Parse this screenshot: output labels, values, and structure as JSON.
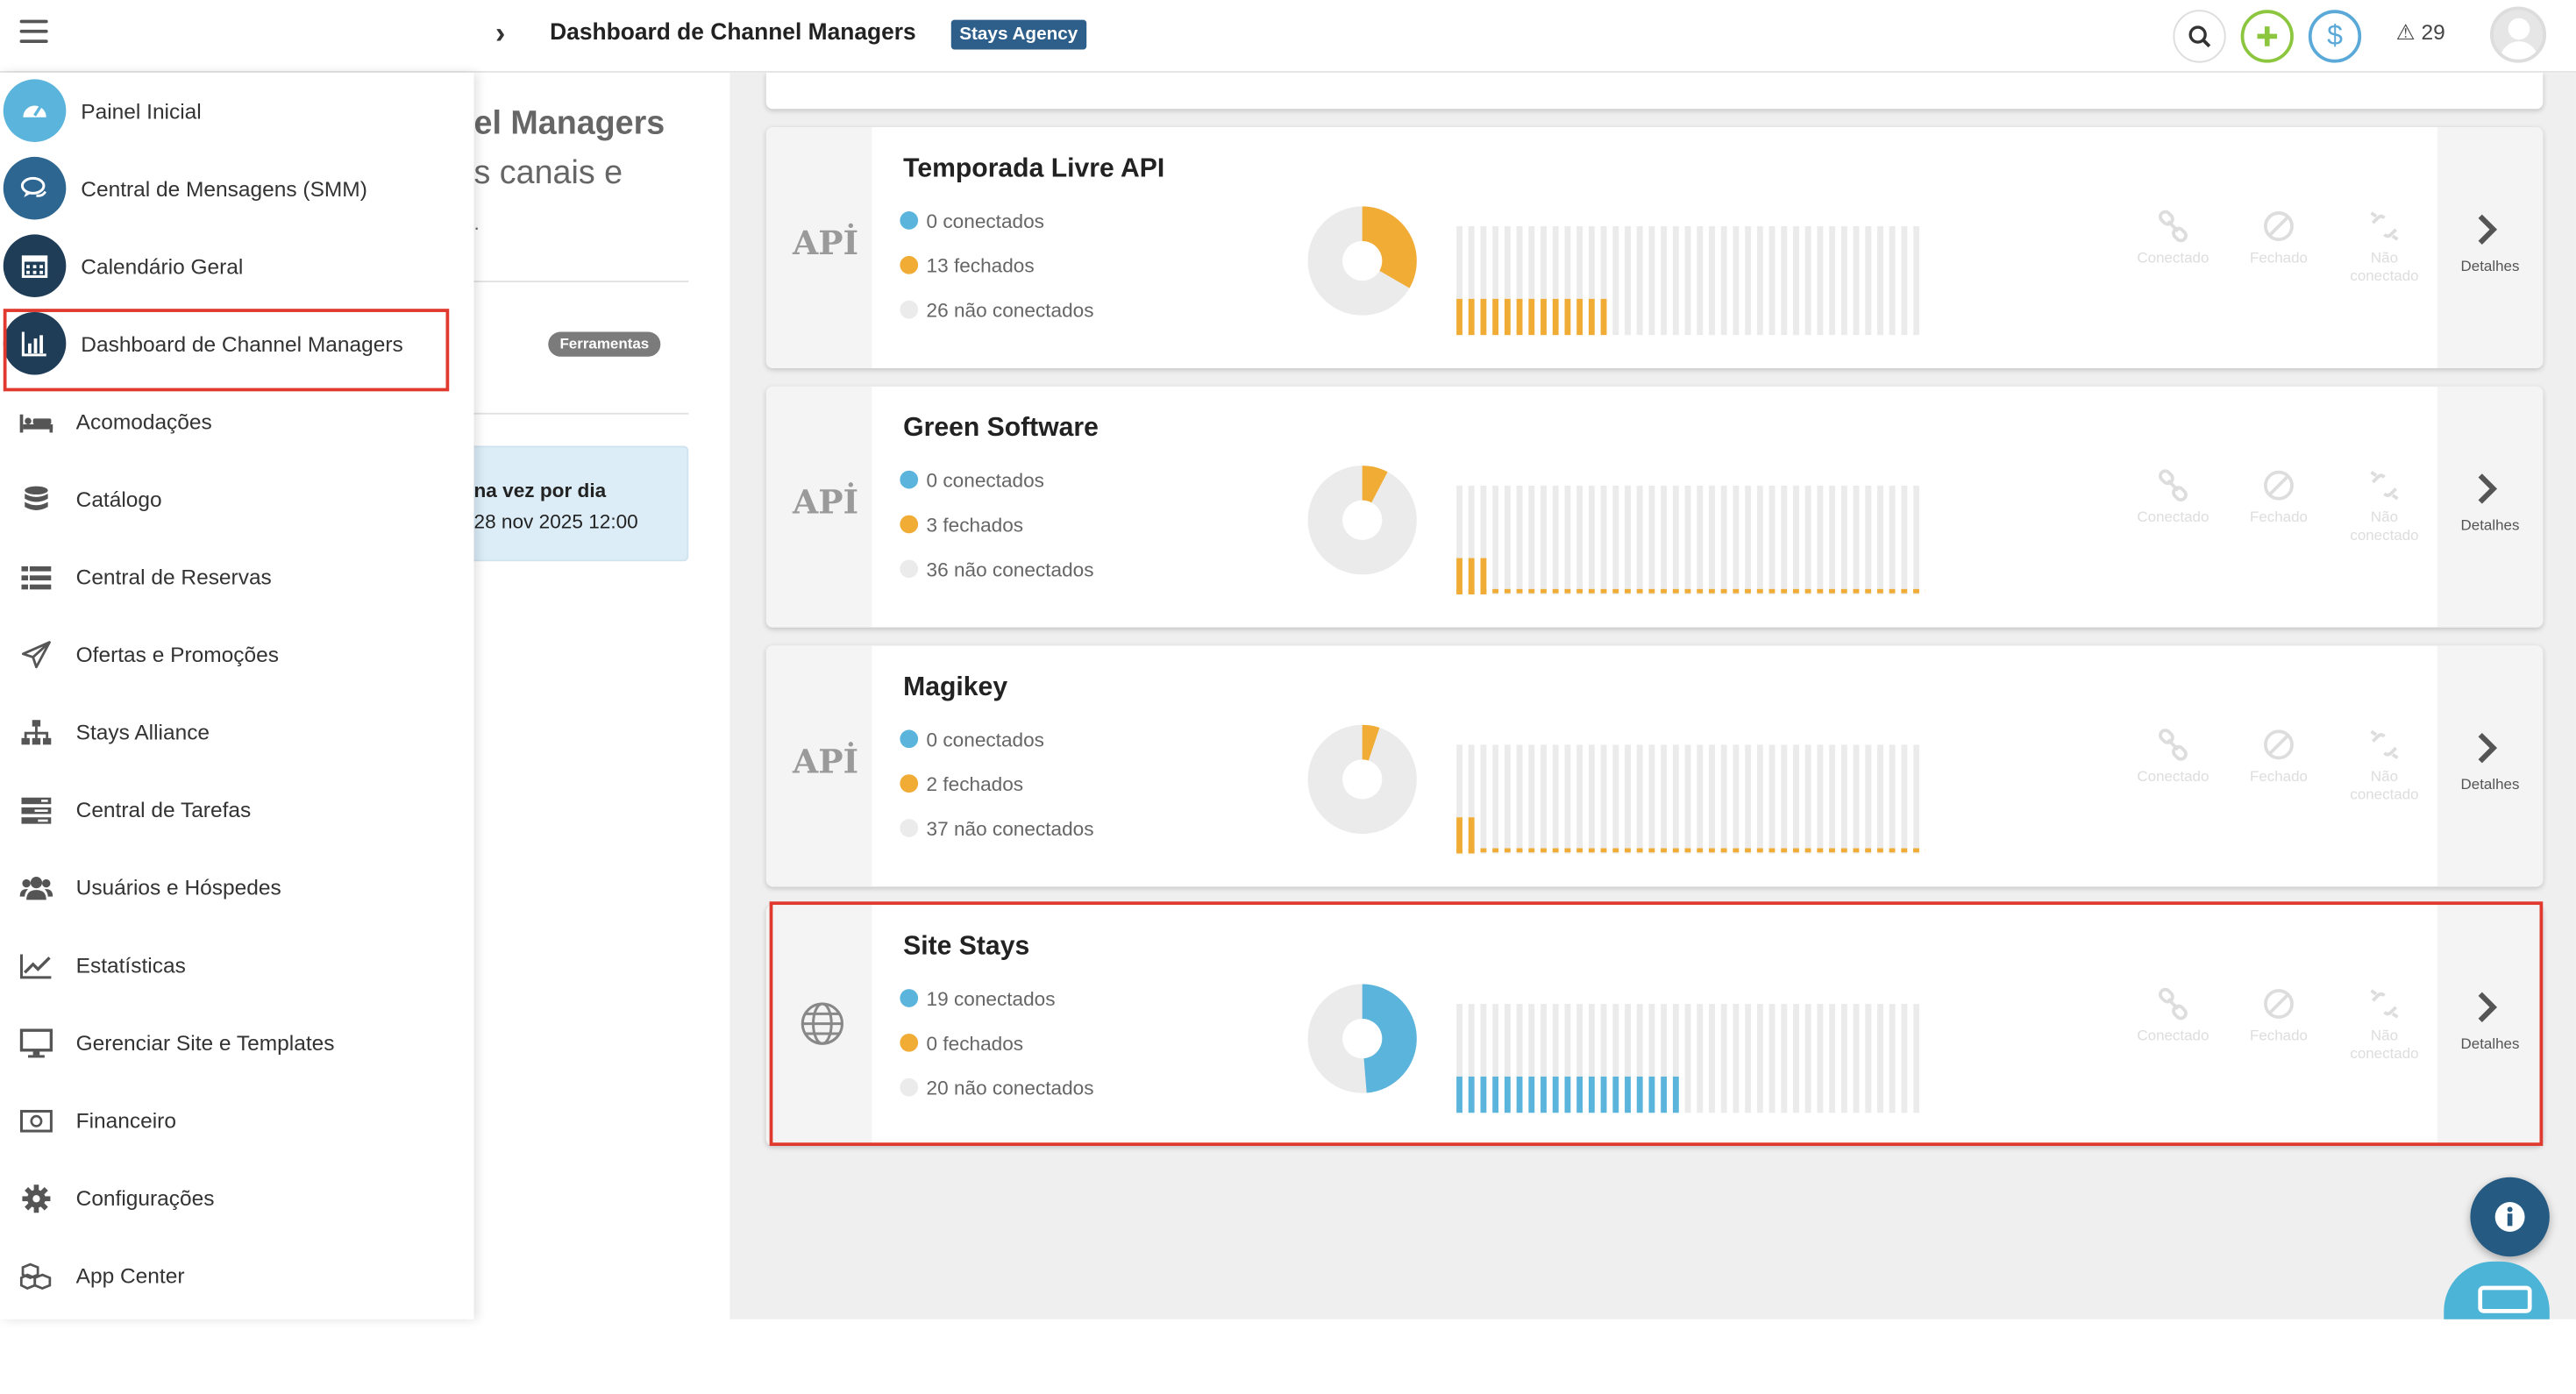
{
  "header": {
    "title": "Dashboard de Channel Managers",
    "agency_badge": "Stays Agency",
    "alerts_count": "29",
    "icons": [
      "menu-icon",
      "chevron-right-icon",
      "search-icon",
      "plus-icon",
      "dollar-icon",
      "warning-icon",
      "avatar"
    ]
  },
  "sidebar": {
    "items": [
      {
        "label": "Painel Inicial",
        "icon": "dashboard-gauge-icon"
      },
      {
        "label": "Central de Mensagens (SMM)",
        "icon": "chat-bubbles-icon"
      },
      {
        "label": "Calendário Geral",
        "icon": "calendar-icon"
      },
      {
        "label": "Dashboard de Channel Managers",
        "icon": "bar-chart-icon"
      },
      {
        "label": "Acomodações",
        "icon": "bed-icon"
      },
      {
        "label": "Catálogo",
        "icon": "database-icon"
      },
      {
        "label": "Central de Reservas",
        "icon": "list-icon"
      },
      {
        "label": "Ofertas e Promoções",
        "icon": "paper-plane-icon"
      },
      {
        "label": "Stays Alliance",
        "icon": "sitemap-icon"
      },
      {
        "label": "Central de Tarefas",
        "icon": "tasks-icon"
      },
      {
        "label": "Usuários e Hóspedes",
        "icon": "users-icon"
      },
      {
        "label": "Estatísticas",
        "icon": "line-chart-icon"
      },
      {
        "label": "Gerenciar Site e Templates",
        "icon": "monitor-icon"
      },
      {
        "label": "Financeiro",
        "icon": "money-icon"
      },
      {
        "label": "Configurações",
        "icon": "gear-icon"
      },
      {
        "label": "App Center",
        "icon": "cubes-icon"
      }
    ]
  },
  "background_panel": {
    "title_fragment": "el Managers",
    "subtitle_fragment": "s canais e",
    "dot_fragment": ".",
    "tools_badge": "Ferramentas",
    "schedule_line1": "na vez por dia",
    "schedule_line2": "28 nov 2025 12:00"
  },
  "channels": [
    {
      "name": "Temporada Livre API",
      "icon": "api-icon",
      "connected": "0 conectados",
      "closed": "13 fechados",
      "not_connected": "26 não conectados",
      "counts": {
        "connected": 0,
        "closed": 13,
        "not_connected": 26
      }
    },
    {
      "name": "Green Software",
      "icon": "api-icon",
      "connected": "0 conectados",
      "closed": "3 fechados",
      "not_connected": "36 não conectados",
      "counts": {
        "connected": 0,
        "closed": 3,
        "not_connected": 36
      }
    },
    {
      "name": "Magikey",
      "icon": "api-icon",
      "connected": "0 conectados",
      "closed": "2 fechados",
      "not_connected": "37 não conectados",
      "counts": {
        "connected": 0,
        "closed": 2,
        "not_connected": 37
      }
    },
    {
      "name": "Site Stays",
      "icon": "globe-icon",
      "connected": "19 conectados",
      "closed": "0 fechados",
      "not_connected": "20 não conectados",
      "counts": {
        "connected": 19,
        "closed": 0,
        "not_connected": 20
      }
    }
  ],
  "card_actions": {
    "connect": "Conectado",
    "close": "Fechado",
    "not_connected_1": "Não",
    "not_connected_2": "conectado",
    "details": "Detalhes"
  },
  "api_label": "APİ",
  "colors": {
    "connected": "#5ab4dc",
    "closed": "#f0ac35",
    "not_connected": "#ebebeb",
    "highlight": "#e03a2f",
    "badge": "#2d5f8a"
  }
}
